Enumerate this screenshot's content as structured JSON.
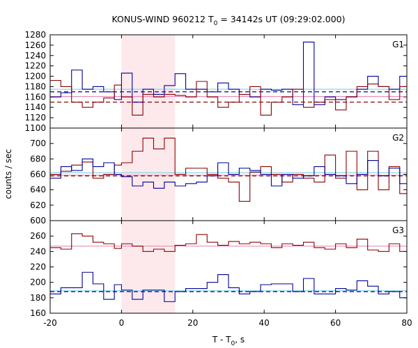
{
  "chart_data": {
    "type": "line",
    "title": {
      "main": "KONUS-WIND 960212 T",
      "sub": "0",
      "rest": " = 34142s UT (09:29:02.000)"
    },
    "xlabel": {
      "main": "T - T",
      "sub": "0",
      "rest": ", s"
    },
    "ylabel": "counts / sec",
    "xlim": [
      -20,
      80
    ],
    "xticks": [
      "-20",
      "0",
      "20",
      "40",
      "60",
      "80"
    ],
    "grid": false,
    "highlight_interval": [
      0,
      15
    ],
    "colors": {
      "blue": "#00009a",
      "red": "#8b0000",
      "cyan": "#7fd4e6",
      "pink": "#e98fb8",
      "highlight": "#fde9ec"
    },
    "panels": [
      {
        "label": "G1",
        "ylim": [
          1100,
          1280
        ],
        "yticks": [
          "1100",
          "1120",
          "1140",
          "1160",
          "1180",
          "1200",
          "1220",
          "1240",
          "1260",
          "1280"
        ],
        "x_edges": [
          -20,
          -17,
          -14,
          -11,
          -8,
          -5,
          -2,
          0,
          3,
          6,
          9,
          12,
          15,
          18,
          21,
          24,
          27,
          30,
          33,
          36,
          39,
          42,
          45,
          48,
          51,
          54,
          57,
          60,
          63,
          66,
          69,
          72,
          75,
          78,
          80
        ],
        "series": [
          {
            "color": "blue",
            "values": [
              1160,
              1168,
              1212,
              1175,
              1180,
              1170,
              1155,
              1206,
              1150,
              1175,
              1165,
              1182,
              1205,
              1175,
              1175,
              1170,
              1187,
              1175,
              1165,
              1160,
              1175,
              1173,
              1175,
              1145,
              1266,
              1145,
              1160,
              1155,
              1160,
              1175,
              1200,
              1180,
              1175,
              1200
            ]
          },
          {
            "color": "red",
            "values": [
              1192,
              1180,
              1150,
              1140,
              1150,
              1158,
              1183,
              1160,
              1125,
              1165,
              1160,
              1165,
              1163,
              1160,
              1190,
              1160,
              1140,
              1150,
              1165,
              1180,
              1125,
              1150,
              1160,
              1175,
              1140,
              1150,
              1155,
              1135,
              1160,
              1180,
              1185,
              1180,
              1155,
              1180
            ]
          }
        ],
        "hlines": [
          {
            "color": "cyan",
            "value": 1175,
            "style": "solid"
          },
          {
            "color": "blue",
            "value": 1170,
            "style": "dashed"
          },
          {
            "color": "pink",
            "value": 1161,
            "style": "solid"
          },
          {
            "color": "red",
            "value": 1150,
            "style": "dashed"
          }
        ]
      },
      {
        "label": "G2",
        "ylim": [
          600,
          720
        ],
        "yticks": [
          "600",
          "620",
          "640",
          "660",
          "680",
          "700"
        ],
        "x_edges": [
          -20,
          -17,
          -14,
          -11,
          -8,
          -5,
          -2,
          0,
          3,
          6,
          9,
          12,
          15,
          18,
          21,
          24,
          27,
          30,
          33,
          36,
          39,
          42,
          45,
          48,
          51,
          54,
          57,
          60,
          63,
          66,
          69,
          72,
          75,
          78,
          80
        ],
        "series": [
          {
            "color": "red",
            "values": [
              660,
              664,
              672,
              676,
              655,
              660,
              672,
              675,
              690,
              707,
              693,
              707,
              660,
              668,
              668,
              660,
              655,
              650,
              625,
              663,
              670,
              660,
              650,
              660,
              655,
              650,
              685,
              655,
              690,
              640,
              690,
              640,
              670,
              635
            ]
          },
          {
            "color": "blue",
            "values": [
              655,
              670,
              665,
              680,
              670,
              675,
              660,
              657,
              645,
              650,
              642,
              650,
              645,
              648,
              650,
              658,
              675,
              660,
              668,
              665,
              660,
              645,
              660,
              655,
              658,
              670,
              660,
              658,
              648,
              660,
              678,
              658,
              668,
              648
            ]
          }
        ],
        "hlines": [
          {
            "color": "cyan",
            "value": 662,
            "style": "solid"
          },
          {
            "color": "pink",
            "value": 659,
            "style": "solid"
          },
          {
            "color": "red",
            "value": 658,
            "style": "dashed"
          }
        ]
      },
      {
        "label": "G3",
        "ylim": [
          160,
          280
        ],
        "yticks": [
          "160",
          "180",
          "200",
          "220",
          "240",
          "260"
        ],
        "x_edges": [
          -20,
          -17,
          -14,
          -11,
          -8,
          -5,
          -2,
          0,
          3,
          6,
          9,
          12,
          15,
          18,
          21,
          24,
          27,
          30,
          33,
          36,
          39,
          42,
          45,
          48,
          51,
          54,
          57,
          60,
          63,
          66,
          69,
          72,
          75,
          78,
          80
        ],
        "series": [
          {
            "color": "red",
            "values": [
              245,
              243,
              263,
              260,
              252,
              250,
              244,
              250,
              247,
              240,
              243,
              240,
              248,
              250,
              262,
              252,
              248,
              253,
              250,
              252,
              250,
              245,
              250,
              248,
              252,
              245,
              243,
              250,
              245,
              256,
              242,
              240,
              250,
              240
            ]
          },
          {
            "color": "blue",
            "values": [
              185,
              193,
              193,
              213,
              198,
              178,
              197,
              190,
              178,
              190,
              190,
              175,
              188,
              192,
              192,
              200,
              210,
              193,
              185,
              188,
              197,
              198,
              198,
              188,
              205,
              185,
              185,
              192,
              190,
              202,
              195,
              185,
              188,
              180
            ]
          }
        ],
        "hlines": [
          {
            "color": "pink",
            "value": 247,
            "style": "solid"
          },
          {
            "color": "cyan",
            "value": 189,
            "style": "solid"
          },
          {
            "color": "blue",
            "value": 188,
            "style": "dashed"
          }
        ]
      }
    ]
  }
}
